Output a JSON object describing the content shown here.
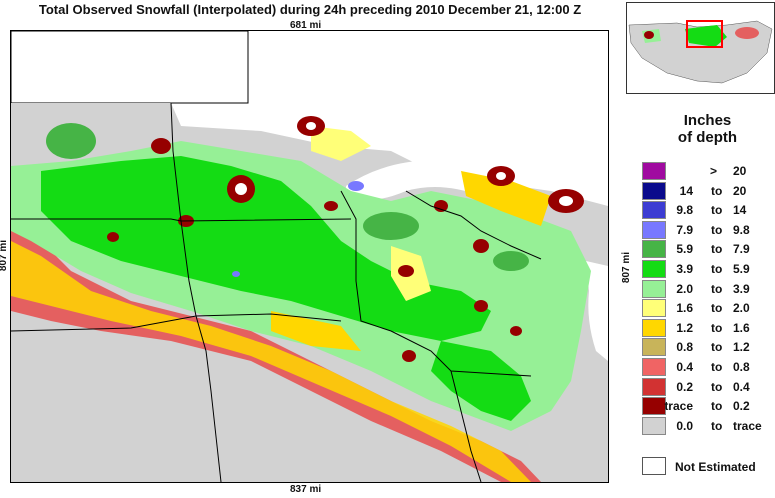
{
  "title": "Total Observed Snowfall (Interpolated) during 24h preceding 2010 December 21, 12:00 Z",
  "dims": {
    "top": "681 mi",
    "bottom": "837 mi",
    "left": "807 mi",
    "right": "807 mi"
  },
  "legend": {
    "title_line1": "Inches",
    "title_line2": "of depth",
    "rows": [
      {
        "lo": ">",
        "to": "",
        "hi": "20",
        "color": "#a00aa0"
      },
      {
        "lo": "14",
        "to": "to",
        "hi": "20",
        "color": "#0a0a8c"
      },
      {
        "lo": "9.8",
        "to": "to",
        "hi": "14",
        "color": "#3c3cd2"
      },
      {
        "lo": "7.9",
        "to": "to",
        "hi": "9.8",
        "color": "#7878ff"
      },
      {
        "lo": "5.9",
        "to": "to",
        "hi": "7.9",
        "color": "#46b446"
      },
      {
        "lo": "3.9",
        "to": "to",
        "hi": "5.9",
        "color": "#14dc14"
      },
      {
        "lo": "2.0",
        "to": "to",
        "hi": "3.9",
        "color": "#96f096"
      },
      {
        "lo": "1.6",
        "to": "to",
        "hi": "2.0",
        "color": "#ffff78"
      },
      {
        "lo": "1.2",
        "to": "to",
        "hi": "1.6",
        "color": "#ffd700"
      },
      {
        "lo": "0.8",
        "to": "to",
        "hi": "1.2",
        "color": "#c8b45a"
      },
      {
        "lo": "0.4",
        "to": "to",
        "hi": "0.8",
        "color": "#f06464"
      },
      {
        "lo": "0.2",
        "to": "to",
        "hi": "0.4",
        "color": "#d23232"
      },
      {
        "lo": "trace",
        "to": "to",
        "hi": "0.2",
        "color": "#960000"
      },
      {
        "lo": "0.0",
        "to": "to",
        "hi": "trace",
        "color": "#d2d2d2"
      }
    ],
    "not_estimated": "Not Estimated"
  }
}
